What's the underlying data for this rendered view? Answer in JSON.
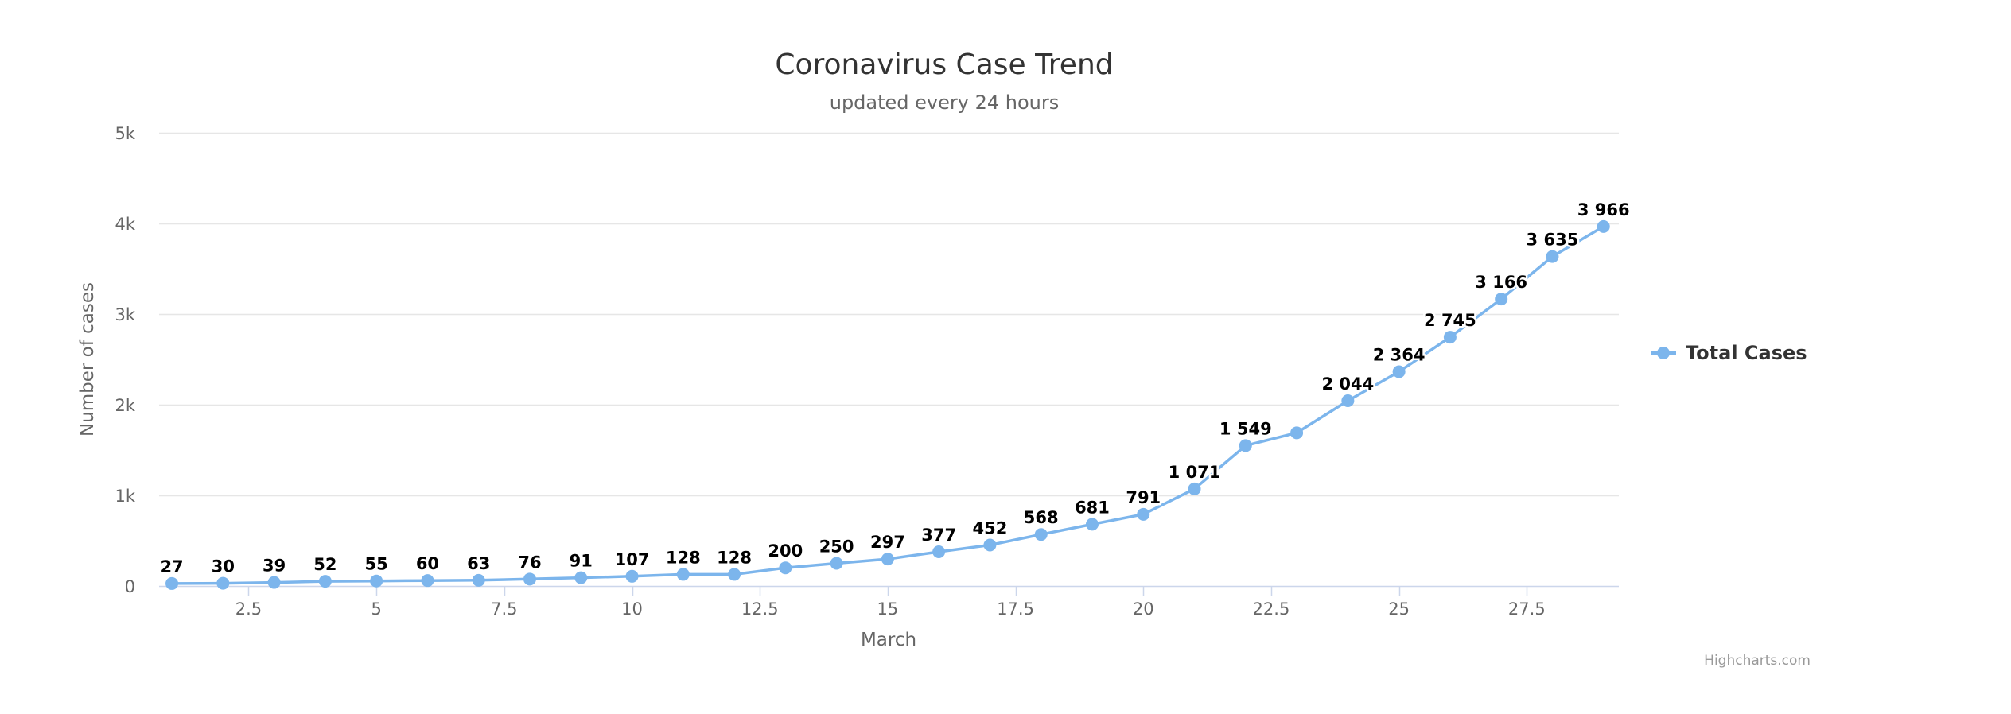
{
  "chart_data": {
    "type": "line",
    "title": "Coronavirus Case Trend",
    "subtitle": "updated every 24 hours",
    "xlabel": "March",
    "ylabel": "Number of cases",
    "xlim": [
      0.75,
      29.3
    ],
    "ylim": [
      0,
      5000
    ],
    "x_ticks": [
      2.5,
      5,
      7.5,
      10,
      12.5,
      15,
      17.5,
      20,
      22.5,
      25,
      27.5
    ],
    "y_ticks": [
      0,
      1000,
      2000,
      3000,
      4000,
      5000
    ],
    "y_tick_labels": [
      "0",
      "1k",
      "2k",
      "3k",
      "4k",
      "5k"
    ],
    "grid": "horizontal",
    "legend_position": "right",
    "color": "#7cb5ec",
    "series": [
      {
        "name": "Total Cases",
        "x": [
          1,
          2,
          3,
          4,
          5,
          6,
          7,
          8,
          9,
          10,
          11,
          12,
          13,
          14,
          15,
          16,
          17,
          18,
          19,
          20,
          21,
          22,
          23,
          24,
          25,
          26,
          27,
          28,
          29
        ],
        "values": [
          27,
          30,
          39,
          52,
          55,
          60,
          63,
          76,
          91,
          107,
          128,
          128,
          200,
          250,
          297,
          377,
          452,
          568,
          681,
          791,
          1071,
          1549,
          1690,
          2044,
          2364,
          2745,
          3166,
          3635,
          3966
        ],
        "labels": [
          "27",
          "30",
          "39",
          "52",
          "55",
          "60",
          "63",
          "76",
          "91",
          "107",
          "128",
          "128",
          "200",
          "250",
          "297",
          "377",
          "452",
          "568",
          "681",
          "791",
          "1 071",
          "1 549",
          "",
          "2 044",
          "2 364",
          "2 745",
          "3 166",
          "3 635",
          "3 966"
        ]
      }
    ]
  },
  "credits": "Highcharts.com"
}
